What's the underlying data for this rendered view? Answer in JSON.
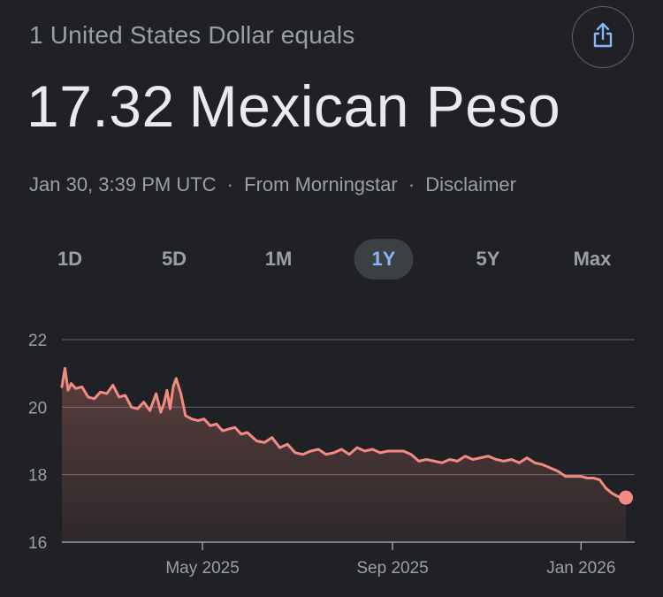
{
  "header": {
    "subtitle": "1 United States Dollar equals",
    "rate": "17.32",
    "currency": "Mexican Peso",
    "timestamp": "Jan 30, 3:39 PM UTC",
    "separator": "·",
    "source": "From Morningstar",
    "disclaimer": "Disclaimer",
    "share_icon": "share-icon"
  },
  "tabs": [
    {
      "label": "1D",
      "active": false
    },
    {
      "label": "5D",
      "active": false
    },
    {
      "label": "1M",
      "active": false
    },
    {
      "label": "1Y",
      "active": true
    },
    {
      "label": "5Y",
      "active": false
    },
    {
      "label": "Max",
      "active": false
    }
  ],
  "colors": {
    "background": "#202124",
    "line": "#f28b82",
    "active_tab_text": "#8ab4f8",
    "gridline": "#5f6368"
  },
  "chart_data": {
    "type": "area",
    "title": "",
    "xlabel": "",
    "ylabel": "",
    "ylim": [
      16,
      22
    ],
    "yticks": [
      "16",
      "18",
      "20",
      "22"
    ],
    "xlim": [
      "2025-01-30",
      "2026-01-30"
    ],
    "xticks": [
      {
        "label": "May 2025",
        "date": "2025-05-01"
      },
      {
        "label": "Sep 2025",
        "date": "2025-09-01"
      },
      {
        "label": "Jan 2026",
        "date": "2026-01-01"
      }
    ],
    "grid": true,
    "series": [
      {
        "x": [
          "2025-01-30",
          "2025-02-01",
          "2025-02-03",
          "2025-02-05",
          "2025-02-08",
          "2025-02-12",
          "2025-02-16",
          "2025-02-20",
          "2025-02-24",
          "2025-02-28",
          "2025-03-04",
          "2025-03-08",
          "2025-03-12",
          "2025-03-16",
          "2025-03-20",
          "2025-03-24",
          "2025-03-28",
          "2025-04-01",
          "2025-04-04",
          "2025-04-06",
          "2025-04-08",
          "2025-04-10",
          "2025-04-12",
          "2025-04-14",
          "2025-04-17",
          "2025-04-20",
          "2025-04-24",
          "2025-04-28",
          "2025-05-02",
          "2025-05-06",
          "2025-05-10",
          "2025-05-14",
          "2025-05-18",
          "2025-05-22",
          "2025-05-26",
          "2025-05-30",
          "2025-06-05",
          "2025-06-10",
          "2025-06-15",
          "2025-06-20",
          "2025-06-25",
          "2025-06-30",
          "2025-07-05",
          "2025-07-10",
          "2025-07-15",
          "2025-07-20",
          "2025-07-25",
          "2025-07-30",
          "2025-08-04",
          "2025-08-09",
          "2025-08-14",
          "2025-08-19",
          "2025-08-24",
          "2025-08-29",
          "2025-09-03",
          "2025-09-08",
          "2025-09-13",
          "2025-09-18",
          "2025-09-23",
          "2025-09-28",
          "2025-10-03",
          "2025-10-08",
          "2025-10-13",
          "2025-10-18",
          "2025-10-23",
          "2025-10-28",
          "2025-11-02",
          "2025-11-07",
          "2025-11-12",
          "2025-11-17",
          "2025-11-22",
          "2025-11-27",
          "2025-12-02",
          "2025-12-07",
          "2025-12-12",
          "2025-12-17",
          "2025-12-22",
          "2025-12-27",
          "2026-01-01",
          "2026-01-05",
          "2026-01-09",
          "2026-01-13",
          "2026-01-17",
          "2026-01-21",
          "2026-01-25",
          "2026-01-30"
        ],
        "values": [
          20.6,
          21.15,
          20.5,
          20.7,
          20.55,
          20.6,
          20.3,
          20.25,
          20.45,
          20.4,
          20.65,
          20.3,
          20.35,
          20.0,
          19.95,
          20.15,
          19.9,
          20.4,
          19.85,
          20.1,
          20.5,
          19.95,
          20.6,
          20.85,
          20.4,
          19.75,
          19.65,
          19.6,
          19.65,
          19.45,
          19.5,
          19.3,
          19.35,
          19.4,
          19.2,
          19.25,
          19.0,
          18.95,
          19.1,
          18.8,
          18.9,
          18.65,
          18.6,
          18.7,
          18.75,
          18.6,
          18.65,
          18.75,
          18.6,
          18.8,
          18.7,
          18.75,
          18.65,
          18.7,
          18.7,
          18.7,
          18.6,
          18.4,
          18.45,
          18.4,
          18.35,
          18.45,
          18.4,
          18.55,
          18.45,
          18.5,
          18.55,
          18.45,
          18.4,
          18.45,
          18.35,
          18.5,
          18.35,
          18.3,
          18.2,
          18.1,
          17.95,
          17.95,
          17.95,
          17.9,
          17.9,
          17.85,
          17.6,
          17.45,
          17.35,
          17.32
        ]
      }
    ]
  }
}
